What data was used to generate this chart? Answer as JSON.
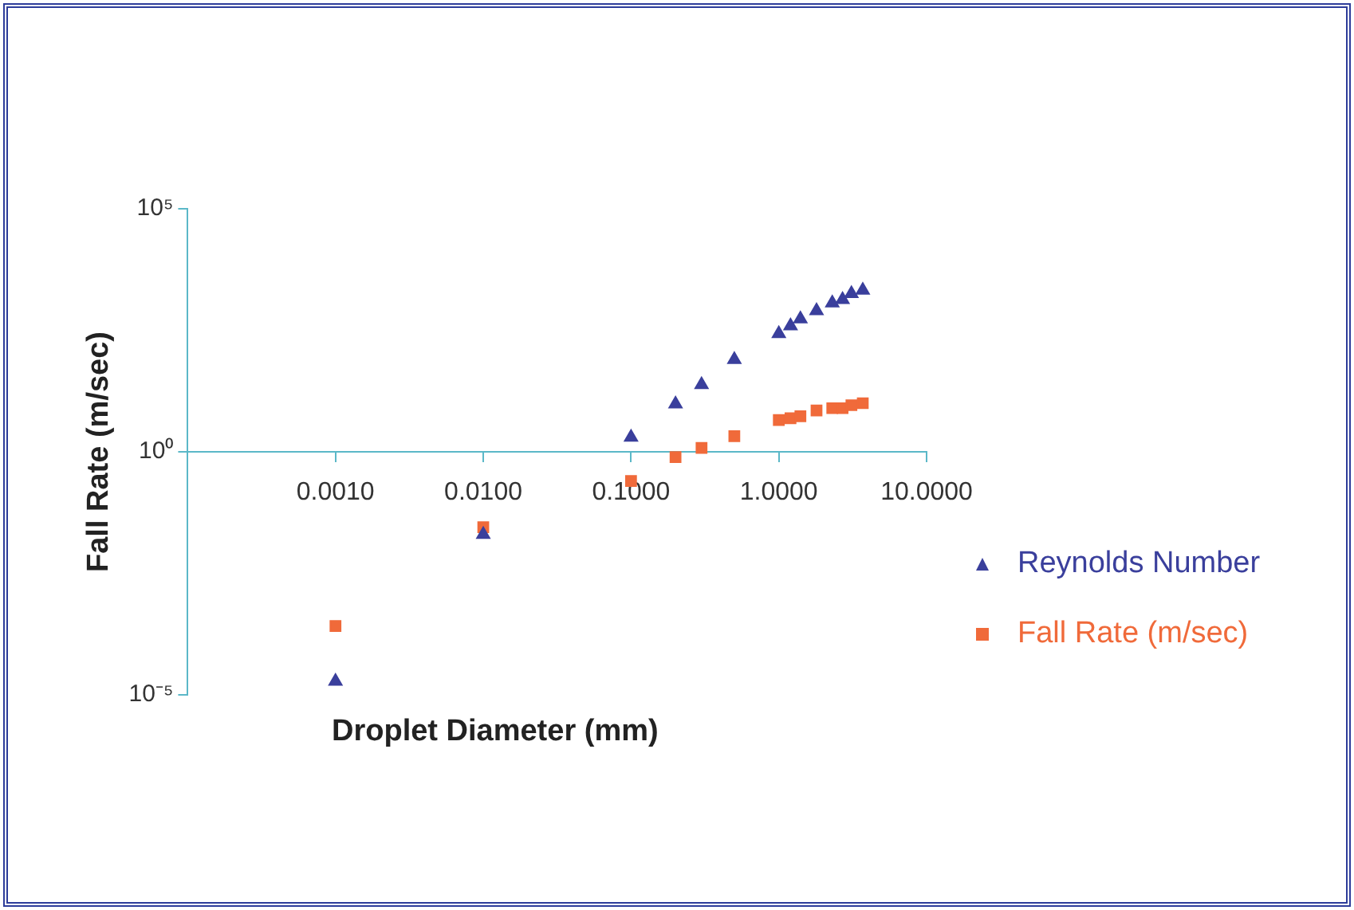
{
  "chart_data": {
    "type": "scatter",
    "xlabel": "Droplet Diameter (mm)",
    "ylabel": "Fall Rate (m/sec)",
    "log": "xy",
    "xlim": [
      0.0001,
      10
    ],
    "ylim": [
      1e-05,
      100000
    ],
    "xticks": [
      {
        "value": 0.001,
        "label": "0.0010"
      },
      {
        "value": 0.01,
        "label": "0.0100"
      },
      {
        "value": 0.1,
        "label": "0.1000"
      },
      {
        "value": 1,
        "label": "1.0000"
      },
      {
        "value": 10,
        "label": "10.0000"
      }
    ],
    "yticks": [
      {
        "value": 1e-05,
        "label": "10⁻⁵"
      },
      {
        "value": 1,
        "label": "10⁰"
      },
      {
        "value": 100000,
        "label": "10⁵"
      }
    ],
    "grid": false,
    "legend": "right",
    "x": [
      0.001,
      0.01,
      0.1,
      0.2,
      0.3,
      0.5,
      1.0,
      1.2,
      1.4,
      1.8,
      2.3,
      2.7,
      3.1,
      3.7
    ],
    "series": [
      {
        "name": "Reynolds Number",
        "color": "#3a3f9c",
        "marker": "triangle",
        "values": [
          1.9e-05,
          0.02,
          2.0,
          9.6,
          24,
          79,
          270,
          390,
          540,
          800,
          1150,
          1350,
          1800,
          2100
        ]
      },
      {
        "name": "Fall Rate (m/sec)",
        "color": "#f06a3a",
        "marker": "square",
        "values": [
          0.00026,
          0.028,
          0.25,
          0.78,
          1.2,
          2.1,
          4.5,
          4.9,
          5.4,
          7.1,
          7.9,
          7.9,
          9.1,
          10
        ]
      }
    ]
  }
}
